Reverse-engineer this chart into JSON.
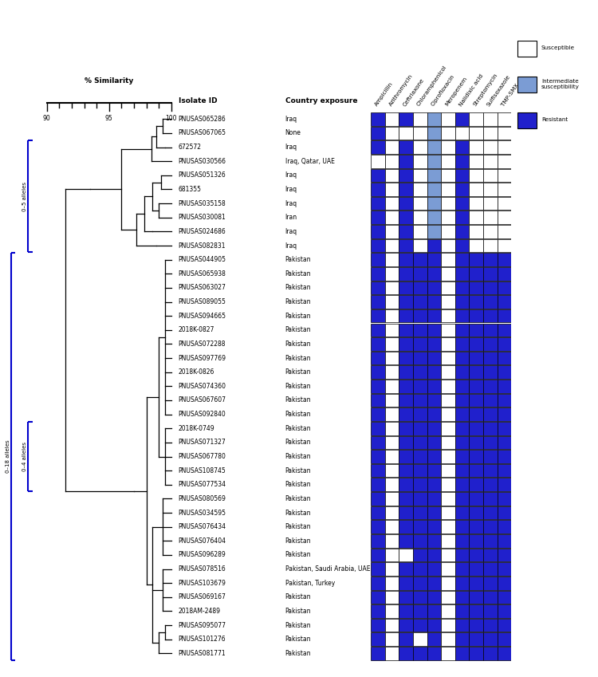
{
  "isolates": [
    "PNUSAS065286",
    "PNUSAS067065",
    "672572",
    "PNUSAS030566",
    "PNUSAS051326",
    "681355",
    "PNUSAS035158",
    "PNUSAS030081",
    "PNUSAS024686",
    "PNUSAS082831",
    "PNUSAS044905",
    "PNUSAS065938",
    "PNUSAS063027",
    "PNUSAS089055",
    "PNUSAS094665",
    "2018K-0827",
    "PNUSAS072288",
    "PNUSAS097769",
    "2018K-0826",
    "PNUSAS074360",
    "PNUSAS067607",
    "PNUSAS092840",
    "2018K-0749",
    "PNUSAS071327",
    "PNUSAS067780",
    "PNUSAS108745",
    "PNUSAS077534",
    "PNUSAS080569",
    "PNUSAS034595",
    "PNUSAS076434",
    "PNUSAS076404",
    "PNUSAS096289",
    "PNUSAS078516",
    "PNUSAS103679",
    "PNUSAS069167",
    "2018AM-2489",
    "PNUSAS095077",
    "PNUSAS101276",
    "PNUSAS081771"
  ],
  "countries": [
    "Iraq",
    "None",
    "Iraq",
    "Iraq, Qatar, UAE",
    "Iraq",
    "Iraq",
    "Iraq",
    "Iran",
    "Iraq",
    "Iraq",
    "Pakistan",
    "Pakistan",
    "Pakistan",
    "Pakistan",
    "Pakistan",
    "Pakistan",
    "Pakistan",
    "Pakistan",
    "Pakistan",
    "Pakistan",
    "Pakistan",
    "Pakistan",
    "Pakistan",
    "Pakistan",
    "Pakistan",
    "Pakistan",
    "Pakistan",
    "Pakistan",
    "Pakistan",
    "Pakistan",
    "Pakistan",
    "Pakistan",
    "Pakistan, Saudi Arabia, UAE",
    "Pakistan, Turkey",
    "Pakistan",
    "Pakistan",
    "Pakistan",
    "Pakistan",
    "Pakistan"
  ],
  "antibiotics": [
    "Ampicillin",
    "Azithromycin",
    "Ceftriaxone",
    "Chloramphenicol",
    "Ciprofloxacin",
    "Meropenem",
    "Nalidixic acid",
    "Streptomycin",
    "Sulfisoxazole",
    "TMP-SMX"
  ],
  "heatmap": [
    [
      1,
      0,
      1,
      0,
      2,
      0,
      1,
      0,
      0,
      0
    ],
    [
      1,
      0,
      0,
      0,
      2,
      0,
      0,
      0,
      0,
      0
    ],
    [
      1,
      0,
      1,
      0,
      2,
      0,
      1,
      0,
      0,
      0
    ],
    [
      0,
      0,
      1,
      0,
      2,
      0,
      1,
      0,
      0,
      0
    ],
    [
      1,
      0,
      1,
      0,
      2,
      0,
      1,
      0,
      0,
      0
    ],
    [
      1,
      0,
      1,
      0,
      2,
      0,
      1,
      0,
      0,
      0
    ],
    [
      1,
      0,
      1,
      0,
      2,
      0,
      1,
      0,
      0,
      0
    ],
    [
      1,
      0,
      1,
      0,
      2,
      0,
      1,
      0,
      0,
      0
    ],
    [
      1,
      0,
      1,
      0,
      2,
      0,
      1,
      0,
      0,
      0
    ],
    [
      1,
      0,
      1,
      0,
      1,
      0,
      1,
      0,
      0,
      0
    ],
    [
      1,
      0,
      1,
      1,
      1,
      0,
      1,
      1,
      1,
      1
    ],
    [
      1,
      0,
      1,
      1,
      1,
      0,
      1,
      1,
      1,
      1
    ],
    [
      1,
      0,
      1,
      1,
      1,
      0,
      1,
      1,
      1,
      1
    ],
    [
      1,
      0,
      1,
      1,
      1,
      0,
      1,
      1,
      1,
      1
    ],
    [
      1,
      0,
      1,
      1,
      1,
      0,
      1,
      1,
      1,
      1
    ],
    [
      1,
      0,
      1,
      1,
      1,
      0,
      1,
      1,
      1,
      1
    ],
    [
      1,
      0,
      1,
      1,
      1,
      0,
      1,
      1,
      1,
      1
    ],
    [
      1,
      0,
      1,
      1,
      1,
      0,
      1,
      1,
      1,
      1
    ],
    [
      1,
      0,
      1,
      1,
      1,
      0,
      1,
      1,
      1,
      1
    ],
    [
      1,
      0,
      1,
      1,
      1,
      0,
      1,
      1,
      1,
      1
    ],
    [
      1,
      0,
      1,
      1,
      1,
      0,
      1,
      1,
      1,
      1
    ],
    [
      1,
      0,
      1,
      1,
      1,
      0,
      1,
      1,
      1,
      1
    ],
    [
      1,
      0,
      1,
      1,
      1,
      0,
      1,
      1,
      1,
      1
    ],
    [
      1,
      0,
      1,
      1,
      1,
      0,
      1,
      1,
      1,
      1
    ],
    [
      1,
      0,
      1,
      1,
      1,
      0,
      1,
      1,
      1,
      1
    ],
    [
      1,
      0,
      1,
      1,
      1,
      0,
      1,
      1,
      1,
      1
    ],
    [
      1,
      0,
      1,
      1,
      1,
      0,
      1,
      1,
      1,
      1
    ],
    [
      1,
      0,
      1,
      1,
      1,
      0,
      1,
      1,
      1,
      1
    ],
    [
      1,
      0,
      1,
      1,
      1,
      0,
      1,
      1,
      1,
      1
    ],
    [
      1,
      0,
      1,
      1,
      1,
      0,
      1,
      1,
      1,
      1
    ],
    [
      1,
      0,
      1,
      1,
      1,
      0,
      1,
      1,
      1,
      1
    ],
    [
      1,
      0,
      0,
      1,
      1,
      0,
      1,
      1,
      1,
      1
    ],
    [
      1,
      0,
      1,
      1,
      1,
      0,
      1,
      1,
      1,
      1
    ],
    [
      1,
      0,
      1,
      1,
      1,
      0,
      1,
      1,
      1,
      1
    ],
    [
      1,
      0,
      1,
      1,
      1,
      0,
      1,
      1,
      1,
      1
    ],
    [
      1,
      0,
      1,
      1,
      1,
      0,
      1,
      1,
      1,
      1
    ],
    [
      1,
      0,
      1,
      1,
      1,
      0,
      1,
      1,
      1,
      1
    ],
    [
      1,
      0,
      1,
      0,
      1,
      0,
      1,
      1,
      1,
      1
    ],
    [
      1,
      0,
      1,
      1,
      1,
      0,
      1,
      1,
      1,
      1
    ]
  ],
  "color_map": {
    "0": "#ffffff",
    "1": "#2020cc",
    "2": "#7b9cd4"
  },
  "bracket_color": "#0000cc",
  "tree_color": "#000000",
  "sim_min": 90,
  "sim_max": 100,
  "sim_ticks": [
    90,
    95,
    100
  ]
}
